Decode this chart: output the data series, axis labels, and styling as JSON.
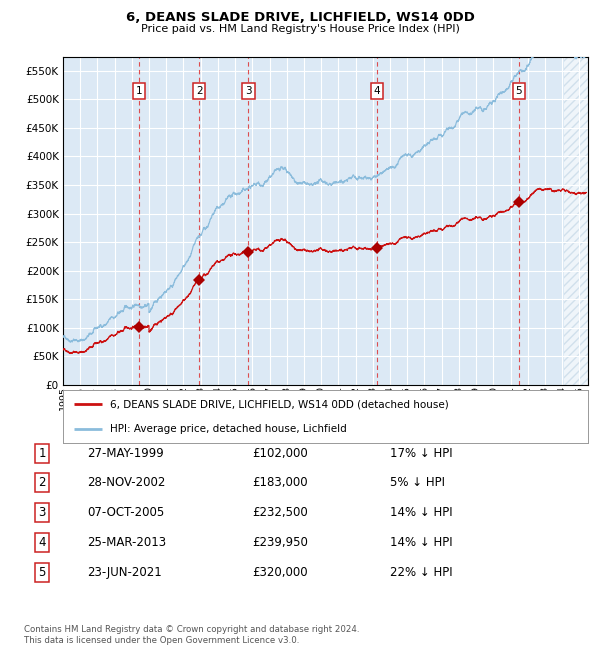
{
  "title": "6, DEANS SLADE DRIVE, LICHFIELD, WS14 0DD",
  "subtitle": "Price paid vs. HM Land Registry's House Price Index (HPI)",
  "ylim": [
    0,
    575000
  ],
  "yticks": [
    0,
    50000,
    100000,
    150000,
    200000,
    250000,
    300000,
    350000,
    400000,
    450000,
    500000,
    550000
  ],
  "xlim_start": 1995.0,
  "xlim_end": 2025.5,
  "plot_bg_color": "#dce9f5",
  "grid_color": "#ffffff",
  "hpi_line_color": "#8bbcdc",
  "price_line_color": "#cc1111",
  "sale_marker_color": "#aa0000",
  "dashed_line_color": "#dd3333",
  "sales": [
    {
      "label": "1",
      "date_decimal": 1999.41,
      "price": 102000
    },
    {
      "label": "2",
      "date_decimal": 2002.91,
      "price": 183000
    },
    {
      "label": "3",
      "date_decimal": 2005.77,
      "price": 232500
    },
    {
      "label": "4",
      "date_decimal": 2013.23,
      "price": 239950
    },
    {
      "label": "5",
      "date_decimal": 2021.48,
      "price": 320000
    }
  ],
  "sale_table": [
    {
      "num": "1",
      "date": "27-MAY-1999",
      "price": "£102,000",
      "note": "17% ↓ HPI"
    },
    {
      "num": "2",
      "date": "28-NOV-2002",
      "price": "£183,000",
      "note": "5% ↓ HPI"
    },
    {
      "num": "3",
      "date": "07-OCT-2005",
      "price": "£232,500",
      "note": "14% ↓ HPI"
    },
    {
      "num": "4",
      "date": "25-MAR-2013",
      "price": "£239,950",
      "note": "14% ↓ HPI"
    },
    {
      "num": "5",
      "date": "23-JUN-2021",
      "price": "£320,000",
      "note": "22% ↓ HPI"
    }
  ],
  "legend_label_price": "6, DEANS SLADE DRIVE, LICHFIELD, WS14 0DD (detached house)",
  "legend_label_hpi": "HPI: Average price, detached house, Lichfield",
  "footer": "Contains HM Land Registry data © Crown copyright and database right 2024.\nThis data is licensed under the Open Government Licence v3.0."
}
